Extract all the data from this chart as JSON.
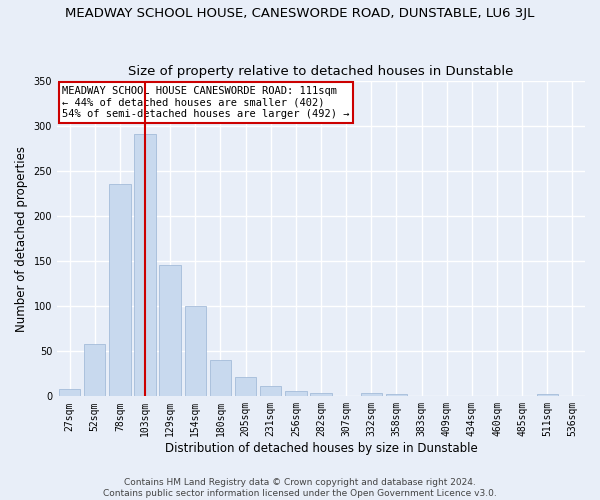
{
  "title": "MEADWAY SCHOOL HOUSE, CANESWORDE ROAD, DUNSTABLE, LU6 3JL",
  "subtitle": "Size of property relative to detached houses in Dunstable",
  "xlabel": "Distribution of detached houses by size in Dunstable",
  "ylabel": "Number of detached properties",
  "categories": [
    "27sqm",
    "52sqm",
    "78sqm",
    "103sqm",
    "129sqm",
    "154sqm",
    "180sqm",
    "205sqm",
    "231sqm",
    "256sqm",
    "282sqm",
    "307sqm",
    "332sqm",
    "358sqm",
    "383sqm",
    "409sqm",
    "434sqm",
    "460sqm",
    "485sqm",
    "511sqm",
    "536sqm"
  ],
  "values": [
    8,
    58,
    236,
    291,
    146,
    100,
    40,
    21,
    11,
    6,
    4,
    0,
    4,
    3,
    0,
    0,
    0,
    0,
    0,
    3,
    0
  ],
  "bar_color": "#c8d9ee",
  "bar_edge_color": "#9ab4d4",
  "vline_x": 3.0,
  "vline_color": "#cc0000",
  "annotation_line1": "MEADWAY SCHOOL HOUSE CANESWORDE ROAD: 111sqm",
  "annotation_line2": "← 44% of detached houses are smaller (402)",
  "annotation_line3": "54% of semi-detached houses are larger (492) →",
  "annotation_box_color": "#ffffff",
  "annotation_box_edge_color": "#cc0000",
  "ylim": [
    0,
    350
  ],
  "yticks": [
    0,
    50,
    100,
    150,
    200,
    250,
    300,
    350
  ],
  "footer1": "Contains HM Land Registry data © Crown copyright and database right 2024.",
  "footer2": "Contains public sector information licensed under the Open Government Licence v3.0.",
  "bg_color": "#e8eef8",
  "plot_bg_color": "#e8eef8",
  "grid_color": "#ffffff",
  "title_fontsize": 9.5,
  "subtitle_fontsize": 9.5,
  "label_fontsize": 8.5,
  "tick_fontsize": 7,
  "annot_fontsize": 7.5,
  "footer_fontsize": 6.5
}
